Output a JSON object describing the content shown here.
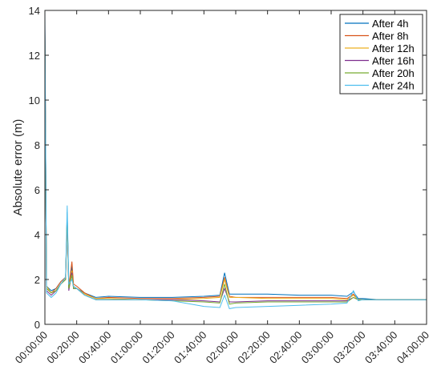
{
  "chart_data": {
    "type": "line",
    "ylabel": "Absolute error (m)",
    "xlabel": "",
    "x_unit": "time (hh:mm:ss)",
    "xlim": [
      "00:00:00",
      "04:00:00"
    ],
    "ylim": [
      0,
      14
    ],
    "x_ticks": [
      "00:00:00",
      "00:20:00",
      "00:40:00",
      "01:00:00",
      "01:20:00",
      "01:40:00",
      "02:00:00",
      "02:20:00",
      "02:40:00",
      "03:00:00",
      "03:20:00",
      "03:40:00",
      "04:00:00"
    ],
    "y_ticks": [
      "0",
      "2",
      "4",
      "6",
      "8",
      "10",
      "12",
      "14"
    ],
    "grid": false,
    "legend_position": "top-right",
    "x": [
      "00:00:00",
      "00:01:00",
      "00:04:00",
      "00:07:00",
      "00:10:00",
      "00:13:00",
      "00:14:00",
      "00:15:00",
      "00:17:00",
      "00:18:00",
      "00:20:00",
      "00:25:00",
      "00:32:00",
      "00:40:00",
      "01:00:00",
      "01:20:00",
      "01:40:00",
      "01:50:00",
      "01:53:00",
      "01:56:00",
      "02:00:00",
      "02:20:00",
      "02:40:00",
      "03:00:00",
      "03:10:00",
      "03:14:00",
      "03:17:00",
      "03:20:00",
      "03:30:00",
      "04:00:00"
    ],
    "series": [
      {
        "name": "After 4h",
        "color": "#0072BD",
        "values": [
          13.2,
          1.7,
          1.5,
          1.6,
          1.9,
          2.1,
          5.0,
          1.6,
          2.6,
          1.6,
          1.6,
          1.4,
          1.2,
          1.25,
          1.2,
          1.2,
          1.25,
          1.3,
          2.3,
          1.35,
          1.35,
          1.35,
          1.3,
          1.3,
          1.25,
          1.45,
          1.15,
          1.15,
          1.1,
          1.1
        ]
      },
      {
        "name": "After 8h",
        "color": "#D95319",
        "values": [
          13.0,
          1.6,
          1.4,
          1.6,
          1.9,
          2.1,
          4.7,
          1.7,
          2.8,
          1.8,
          1.7,
          1.4,
          1.15,
          1.2,
          1.15,
          1.15,
          1.2,
          1.25,
          2.1,
          1.25,
          1.2,
          1.2,
          1.2,
          1.2,
          1.15,
          1.35,
          1.1,
          1.1,
          1.1,
          1.1
        ]
      },
      {
        "name": "After 12h",
        "color": "#EDB120",
        "values": [
          12.8,
          1.7,
          1.4,
          1.5,
          1.8,
          2.0,
          4.6,
          1.6,
          2.4,
          1.7,
          1.6,
          1.35,
          1.15,
          1.15,
          1.1,
          1.1,
          1.15,
          1.2,
          2.0,
          1.2,
          1.2,
          1.15,
          1.15,
          1.15,
          1.1,
          1.3,
          1.1,
          1.1,
          1.1,
          1.1
        ]
      },
      {
        "name": "After 16h",
        "color": "#7E2F8E",
        "values": [
          13.4,
          1.5,
          1.3,
          1.5,
          1.8,
          2.0,
          4.8,
          1.5,
          2.3,
          1.6,
          1.6,
          1.3,
          1.1,
          1.1,
          1.1,
          1.1,
          1.05,
          1.0,
          1.6,
          1.0,
          1.0,
          1.05,
          1.05,
          1.05,
          1.05,
          1.2,
          1.1,
          1.1,
          1.1,
          1.1
        ]
      },
      {
        "name": "After 20h",
        "color": "#77AC30",
        "values": [
          13.1,
          1.6,
          1.4,
          1.5,
          1.8,
          2.0,
          4.9,
          1.6,
          2.2,
          1.6,
          1.6,
          1.3,
          1.1,
          1.1,
          1.1,
          1.05,
          1.0,
          0.95,
          1.8,
          0.9,
          0.95,
          1.0,
          1.0,
          1.0,
          1.0,
          1.2,
          1.1,
          1.1,
          1.1,
          1.1
        ]
      },
      {
        "name": "After 24h",
        "color": "#4DBEEE",
        "values": [
          14.0,
          1.4,
          1.2,
          1.4,
          1.8,
          2.1,
          5.3,
          1.8,
          2.0,
          1.7,
          1.6,
          1.3,
          1.1,
          1.1,
          1.1,
          1.05,
          0.8,
          0.75,
          1.3,
          0.7,
          0.75,
          0.8,
          0.85,
          0.9,
          0.95,
          1.5,
          1.05,
          1.1,
          1.1,
          1.1
        ]
      }
    ]
  }
}
